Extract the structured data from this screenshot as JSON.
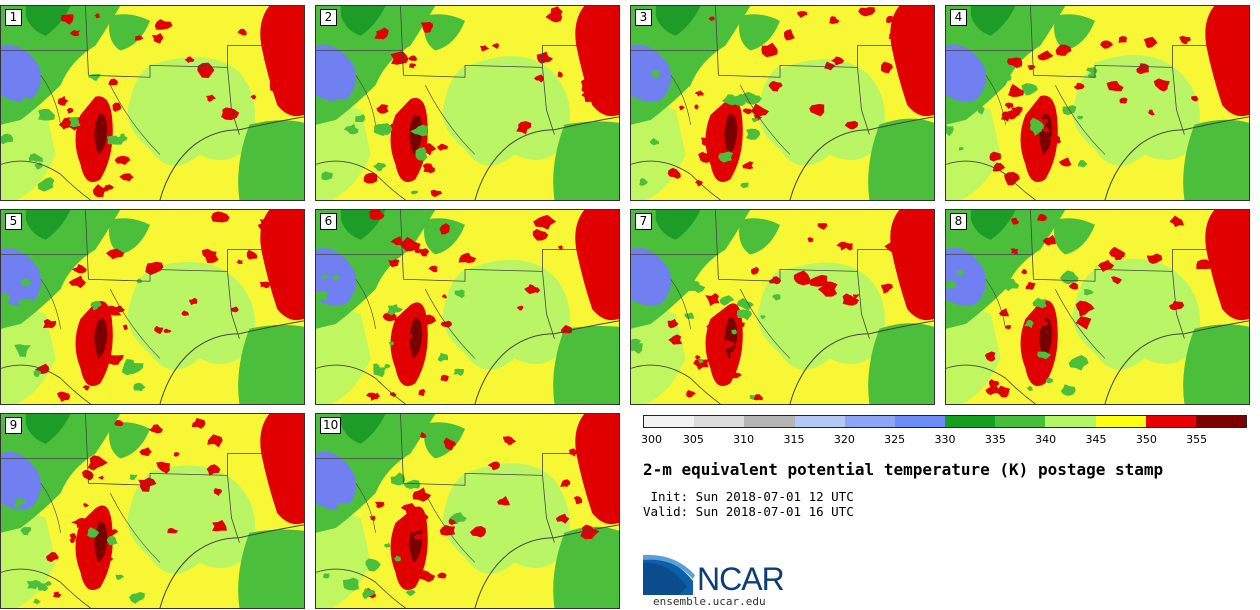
{
  "panels": [
    {
      "label": "1"
    },
    {
      "label": "2"
    },
    {
      "label": "3"
    },
    {
      "label": "4"
    },
    {
      "label": "5"
    },
    {
      "label": "6"
    },
    {
      "label": "7"
    },
    {
      "label": "8"
    },
    {
      "label": "9"
    },
    {
      "label": "10"
    }
  ],
  "colorbar": {
    "ticks": [
      "300",
      "305",
      "310",
      "315",
      "320",
      "325",
      "330",
      "335",
      "340",
      "345",
      "350",
      "355"
    ],
    "colors": [
      "#f2f2f2",
      "#dcdcdc",
      "#b4b4b4",
      "#b4c8f5",
      "#8ca5f5",
      "#6e8cf5",
      "#14a01e",
      "#46be3c",
      "#b4f564",
      "#ffff14",
      "#e60000",
      "#7d0000"
    ]
  },
  "title": "2-m equivalent potential temperature (K) postage stamp",
  "init": " Init: Sun 2018-07-01 12 UTC",
  "valid": "Valid: Sun 2018-07-01 16 UTC",
  "logo": {
    "text": "NCAR",
    "url": "ensemble.ucar.edu"
  },
  "map_colors": {
    "yellow": "#f7f736",
    "light_green": "#b9f564",
    "green": "#4bbe3c",
    "dark_green": "#1e9c28",
    "blue": "#7080f0",
    "red": "#e10000",
    "dark_red": "#780000",
    "boundary": "#444444"
  }
}
